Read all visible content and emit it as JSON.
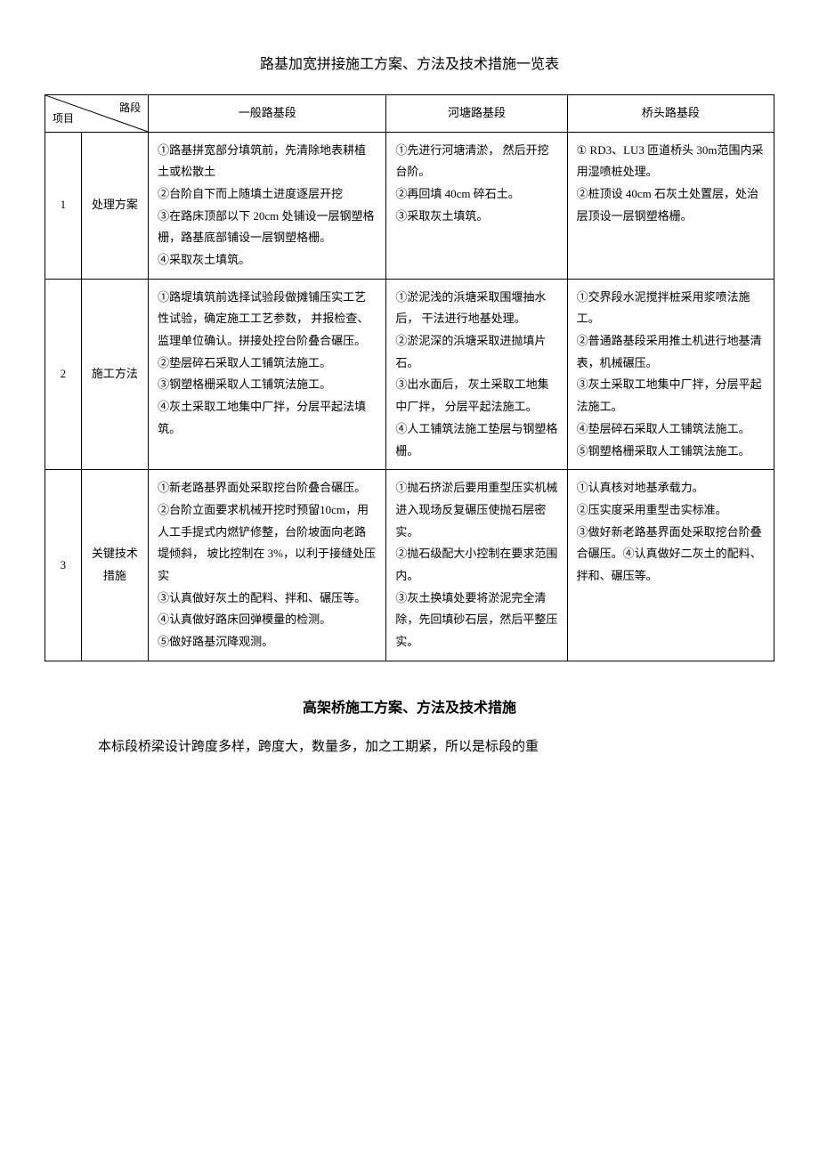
{
  "title1": "路基加宽拼接施工方案、方法及技术措施一览表",
  "header": {
    "diag_top": "路段",
    "diag_bottom": "项目",
    "col3": "一般路基段",
    "col4": "河塘路基段",
    "col5": "桥头路基段"
  },
  "rows": [
    {
      "num": "1",
      "project": "处理方案",
      "general": "①路基拼宽部分填筑前，先清除地表耕植土或松散土\n②台阶自下而上随填土进度逐层开挖\n③在路床顶部以下 20cm 处铺设一层钢塑格栅，路基底部铺设一层钢塑格栅。\n④采取灰土填筑。",
      "pond": "①先进行河塘清淤， 然后开挖台阶。\n②再回填 40cm 碎石土。\n③采取灰土填筑。",
      "bridge": "① RD3、LU3 匝道桥头 30m范围内采用湿喷桩处理。\n②桩顶设 40cm 石灰土处置层，处治层顶设一层钢塑格栅。"
    },
    {
      "num": "2",
      "project": "施工方法",
      "general": "①路堤填筑前选择试验段做摊铺压实工艺性试验，确定施工工艺参数， 并报检查、 监理单位确认。拼接处控台阶叠合碾压。\n②垫层碎石采取人工铺筑法施工。\n③钢塑格栅采取人工铺筑法施工。\n④灰土采取工地集中厂拌，分层平起法填筑。",
      "pond": "①淤泥浅的浜塘采取围堰抽水后， 干法进行地基处理。\n②淤泥深的浜塘采取进抛填片石。\n③出水面后， 灰土采取工地集中厂拌， 分层平起法施工。\n④人工铺筑法施工垫层与钢塑格栅。",
      "bridge": "①交界段水泥搅拌桩采用浆喷法施工。\n②普通路基段采用推土机进行地基清表，机械碾压。\n③灰土采取工地集中厂拌，分层平起法施工。\n④垫层碎石采取人工铺筑法施工。\n⑤钢塑格栅采取人工铺筑法施工。"
    },
    {
      "num": "3",
      "project": "关键技术措施",
      "general": "①新老路基界面处采取挖台阶叠合碾压。\n②台阶立面要求机械开挖时预留10cm，用人工手提式内燃铲修整，台阶坡面向老路堤倾斜， 坡比控制在 3%，以利于接缝处压实\n③认真做好灰土的配料、拌和、碾压等。\n④认真做好路床回弹模量的检测。\n⑤做好路基沉降观测。",
      "pond": "①抛石挤淤后要用重型压实机械进入现场反复碾压使抛石层密实。\n②抛石级配大小控制在要求范围内。\n③灰土换填处要将淤泥完全清除，先回填砂石层，然后平整压实。",
      "bridge": "①认真核对地基承载力。\n②压实度采用重型击实标准。\n③做好新老路基界面处采取挖台阶叠合碾压。④认真做好二灰土的配料、拌和、碾压等。"
    }
  ],
  "title2": "高架桥施工方案、方法及技术措施",
  "paragraph": "本标段桥梁设计跨度多样，跨度大，数量多，加之工期紧，所以是标段的重"
}
